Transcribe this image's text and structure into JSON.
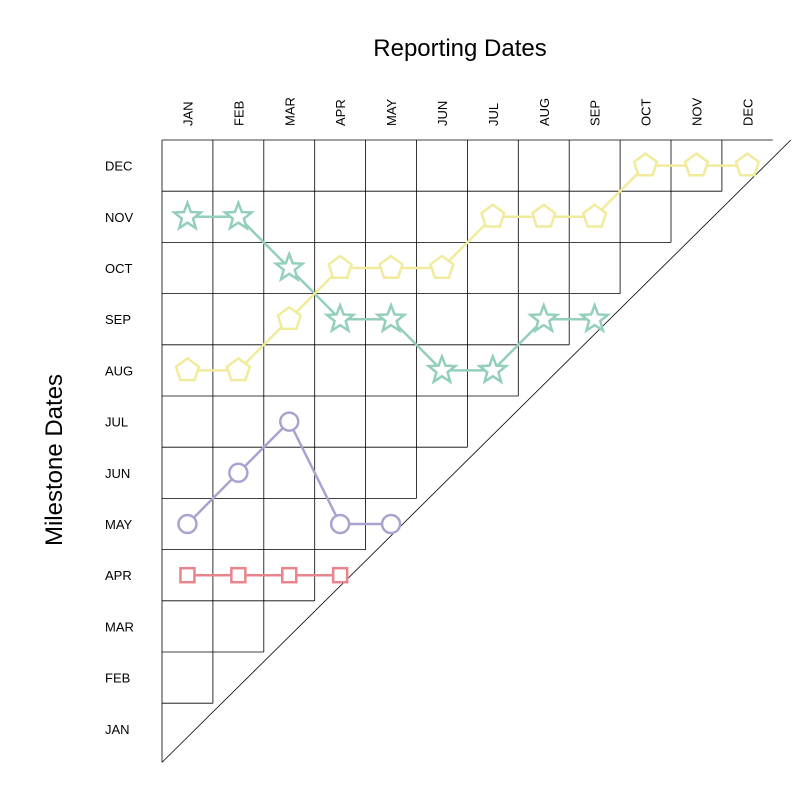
{
  "chart_data": {
    "type": "line",
    "title": "",
    "xlabel": "Reporting Dates",
    "ylabel": "Milestone Dates",
    "x_categories": [
      "JAN",
      "FEB",
      "MAR",
      "APR",
      "MAY",
      "JUN",
      "JUL",
      "AUG",
      "SEP",
      "OCT",
      "NOV",
      "DEC"
    ],
    "y_categories": [
      "JAN",
      "FEB",
      "MAR",
      "APR",
      "MAY",
      "JUN",
      "JUL",
      "AUG",
      "SEP",
      "OCT",
      "NOV",
      "DEC"
    ],
    "grid": true,
    "legend": "none",
    "series": [
      {
        "marker": "square",
        "color": "#e8848c",
        "points": [
          [
            "JAN",
            "APR"
          ],
          [
            "FEB",
            "APR"
          ],
          [
            "MAR",
            "APR"
          ],
          [
            "APR",
            "APR"
          ]
        ]
      },
      {
        "marker": "circle",
        "color": "#aaa3cf",
        "points": [
          [
            "JAN",
            "MAY"
          ],
          [
            "FEB",
            "JUN"
          ],
          [
            "MAR",
            "JUL"
          ],
          [
            "APR",
            "MAY"
          ],
          [
            "MAY",
            "MAY"
          ]
        ]
      },
      {
        "marker": "star",
        "color": "#93cfbc",
        "points": [
          [
            "JAN",
            "NOV"
          ],
          [
            "FEB",
            "NOV"
          ],
          [
            "MAR",
            "OCT"
          ],
          [
            "APR",
            "SEP"
          ],
          [
            "MAY",
            "SEP"
          ],
          [
            "JUN",
            "AUG"
          ],
          [
            "JUL",
            "AUG"
          ],
          [
            "AUG",
            "SEP"
          ],
          [
            "SEP",
            "SEP"
          ]
        ]
      },
      {
        "marker": "pentagon",
        "color": "#f1eb9c",
        "points": [
          [
            "JAN",
            "AUG"
          ],
          [
            "FEB",
            "AUG"
          ],
          [
            "MAR",
            "SEP"
          ],
          [
            "APR",
            "OCT"
          ],
          [
            "MAY",
            "OCT"
          ],
          [
            "JUN",
            "OCT"
          ],
          [
            "JUL",
            "NOV"
          ],
          [
            "AUG",
            "NOV"
          ],
          [
            "SEP",
            "NOV"
          ],
          [
            "OCT",
            "DEC"
          ],
          [
            "NOV",
            "DEC"
          ],
          [
            "DEC",
            "DEC"
          ]
        ]
      }
    ]
  }
}
